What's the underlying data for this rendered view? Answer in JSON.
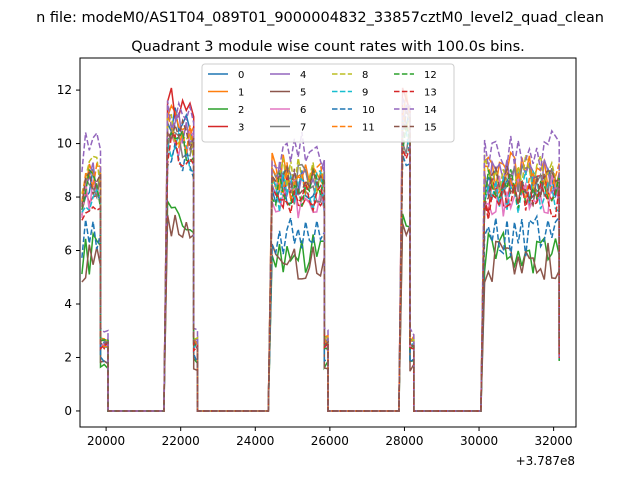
{
  "chart_data": {
    "type": "line",
    "suptitle": "n file: modeM0/AS1T04_089T01_9000004832_33857cztM0_level2_quad_clean",
    "title": "Quadrant 3 module wise count rates with 100.0s bins.",
    "xlabel": "",
    "ylabel": "",
    "x_offset_label": "+3.787e8",
    "xlim": [
      19300,
      32600
    ],
    "ylim": [
      -0.6,
      13.2
    ],
    "xticks": [
      20000,
      22000,
      24000,
      26000,
      28000,
      30000,
      32000
    ],
    "xtick_labels": [
      "20000",
      "22000",
      "24000",
      "26000",
      "28000",
      "30000",
      "32000"
    ],
    "yticks": [
      0,
      2,
      4,
      6,
      8,
      10,
      12
    ],
    "ytick_labels": [
      "0",
      "2",
      "4",
      "6",
      "8",
      "10",
      "12"
    ],
    "grid": false,
    "legend": {
      "placement": "top-center",
      "columns": 4
    },
    "segments": [
      {
        "x_start": 19350,
        "x_end": 19850,
        "level": "on"
      },
      {
        "x_start": 19850,
        "x_end": 20050,
        "level": "decline"
      },
      {
        "x_start": 20050,
        "x_end": 21550,
        "level": "zero"
      },
      {
        "x_start": 21650,
        "x_end": 22350,
        "level": "peak"
      },
      {
        "x_start": 22350,
        "x_end": 22450,
        "level": "decline"
      },
      {
        "x_start": 22450,
        "x_end": 24350,
        "level": "zero"
      },
      {
        "x_start": 24450,
        "x_end": 25850,
        "level": "on"
      },
      {
        "x_start": 25850,
        "x_end": 25950,
        "level": "decline"
      },
      {
        "x_start": 25950,
        "x_end": 27850,
        "level": "zero"
      },
      {
        "x_start": 27950,
        "x_end": 28150,
        "level": "peak"
      },
      {
        "x_start": 28150,
        "x_end": 28250,
        "level": "decline"
      },
      {
        "x_start": 28250,
        "x_end": 30050,
        "level": "zero"
      },
      {
        "x_start": 30150,
        "x_end": 32150,
        "level": "on"
      }
    ],
    "series": [
      {
        "name": "0",
        "color": "#1f77b4",
        "dash": "solid",
        "level": 8.3,
        "peak": 10.9
      },
      {
        "name": "1",
        "color": "#ff7f0e",
        "dash": "solid",
        "level": 8.9,
        "peak": 11.6
      },
      {
        "name": "2",
        "color": "#2ca02c",
        "dash": "solid",
        "level": 5.9,
        "peak": 7.5
      },
      {
        "name": "3",
        "color": "#d62728",
        "dash": "solid",
        "level": 8.1,
        "peak": 11.7
      },
      {
        "name": "4",
        "color": "#9467bd",
        "dash": "solid",
        "level": 8.6,
        "peak": 11.0
      },
      {
        "name": "5",
        "color": "#8c564b",
        "dash": "solid",
        "level": 5.6,
        "peak": 7.0
      },
      {
        "name": "6",
        "color": "#e377c2",
        "dash": "solid",
        "level": 8.0,
        "peak": 10.5
      },
      {
        "name": "7",
        "color": "#7f7f7f",
        "dash": "solid",
        "level": 8.5,
        "peak": 10.4
      },
      {
        "name": "8",
        "color": "#bcbd22",
        "dash": "dashed",
        "level": 8.9,
        "peak": 10.7
      },
      {
        "name": "9",
        "color": "#17becf",
        "dash": "dashed",
        "level": 8.2,
        "peak": 10.2
      },
      {
        "name": "10",
        "color": "#1f77b4",
        "dash": "dashed",
        "level": 6.5,
        "peak": 9.8
      },
      {
        "name": "11",
        "color": "#ff7f0e",
        "dash": "dashed",
        "level": 8.6,
        "peak": 10.8
      },
      {
        "name": "12",
        "color": "#2ca02c",
        "dash": "dashed",
        "level": 8.3,
        "peak": 10.3
      },
      {
        "name": "13",
        "color": "#d62728",
        "dash": "dashed",
        "level": 7.9,
        "peak": 9.9
      },
      {
        "name": "14",
        "color": "#9467bd",
        "dash": "dashed",
        "level": 9.7,
        "peak": 11.3
      },
      {
        "name": "15",
        "color": "#8c564b",
        "dash": "dashed",
        "level": 8.4,
        "peak": 10.6
      }
    ]
  }
}
